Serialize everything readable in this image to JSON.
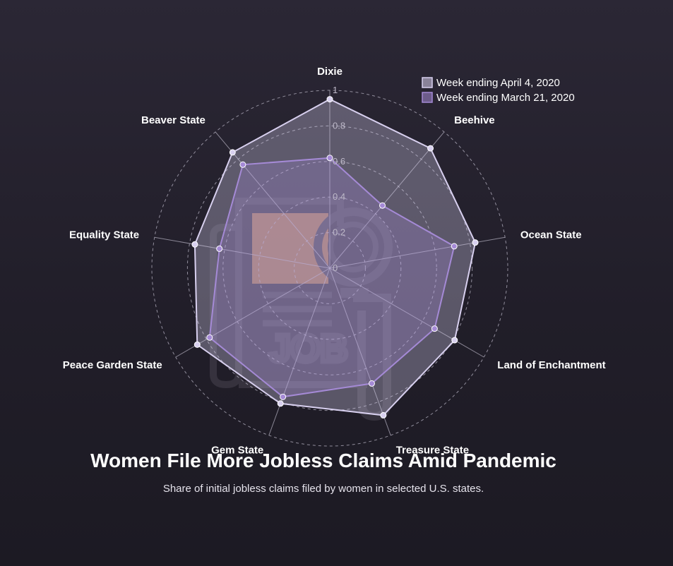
{
  "chart_data": {
    "type": "radar",
    "title": "Women File More Jobless Claims Amid Pandemic",
    "subtitle": "Share of initial jobless claims filed by women in selected U.S. states.",
    "categories": [
      "Dixie",
      "Beehive",
      "Ocean State",
      "Land of Enchantment",
      "Treasure State",
      "Gem State",
      "Peace Garden State",
      "Equality State",
      "Beaver State"
    ],
    "series": [
      {
        "name": "Week ending April 4, 2020",
        "values": [
          0.95,
          0.88,
          0.83,
          0.81,
          0.88,
          0.81,
          0.86,
          0.77,
          0.85
        ],
        "color": "#d8d0ef"
      },
      {
        "name": "Week ending March 21, 2020",
        "values": [
          0.62,
          0.46,
          0.71,
          0.68,
          0.69,
          0.77,
          0.78,
          0.63,
          0.76
        ],
        "color": "#a58ad6"
      }
    ],
    "radial_range": [
      0,
      1
    ],
    "ticks": [
      "0",
      "0.2",
      "0.4",
      "0.6",
      "0.8",
      "1"
    ],
    "grid": true,
    "legend_position": "top-right"
  },
  "colors": {
    "background": "#25222e",
    "grid": "#b7b3c3",
    "accent_orange": "#d48a4a",
    "icon_dark": "#3a3642"
  },
  "icons": [
    "job-search-icon"
  ]
}
